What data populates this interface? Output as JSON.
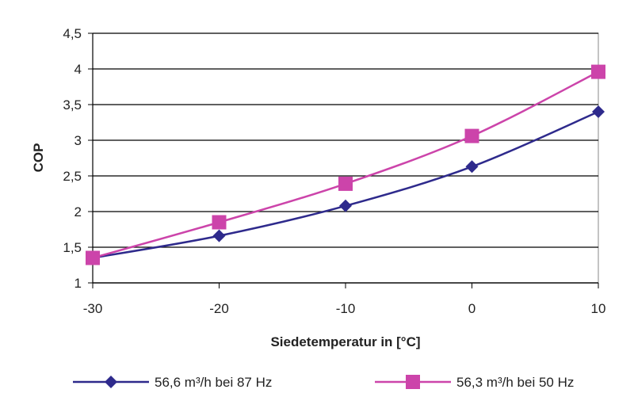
{
  "chart_data": {
    "type": "line",
    "title": "",
    "xlabel": "Siedetemperatur in [°C]",
    "ylabel": "COP",
    "x": [
      -30,
      -20,
      -10,
      0,
      10
    ],
    "xlim": [
      -30,
      10
    ],
    "ylim": [
      1,
      4.5
    ],
    "x_ticks": [
      "-30",
      "-20",
      "-10",
      "0",
      "10"
    ],
    "y_ticks": [
      "1",
      "1,5",
      "2",
      "2,5",
      "3",
      "3,5",
      "4",
      "4,5"
    ],
    "grid": "horizontal",
    "legend_position": "bottom",
    "series": [
      {
        "name": "56,6 m³/h bei 87 Hz",
        "values": [
          1.35,
          1.66,
          2.08,
          2.63,
          3.4
        ],
        "color": "#2e2a8c",
        "marker": "diamond"
      },
      {
        "name": "56,3 m³/h bei 50 Hz",
        "values": [
          1.35,
          1.85,
          2.39,
          3.06,
          3.96
        ],
        "color": "#cc44aa",
        "marker": "square"
      }
    ]
  }
}
